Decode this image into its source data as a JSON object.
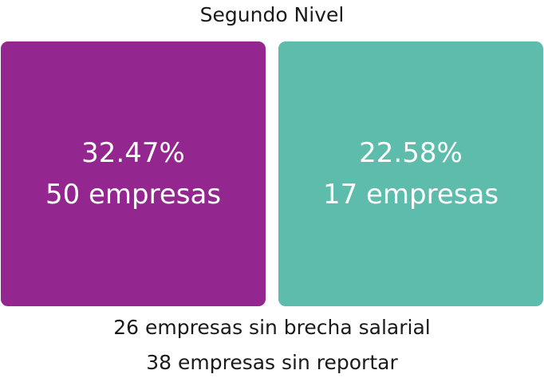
{
  "title": "Segundo Nivel",
  "colors": {
    "left_card": "#93278f",
    "right_card": "#5dbcab",
    "text_dark": "#1a1a1a",
    "text_light": "#ffffff"
  },
  "cards": [
    {
      "percent": "32.47%",
      "companies": "50 empresas"
    },
    {
      "percent": "22.58%",
      "companies": "17 empresas"
    }
  ],
  "footer": {
    "no_gap": "26 empresas sin brecha salarial",
    "not_reported": "38 empresas sin reportar"
  }
}
